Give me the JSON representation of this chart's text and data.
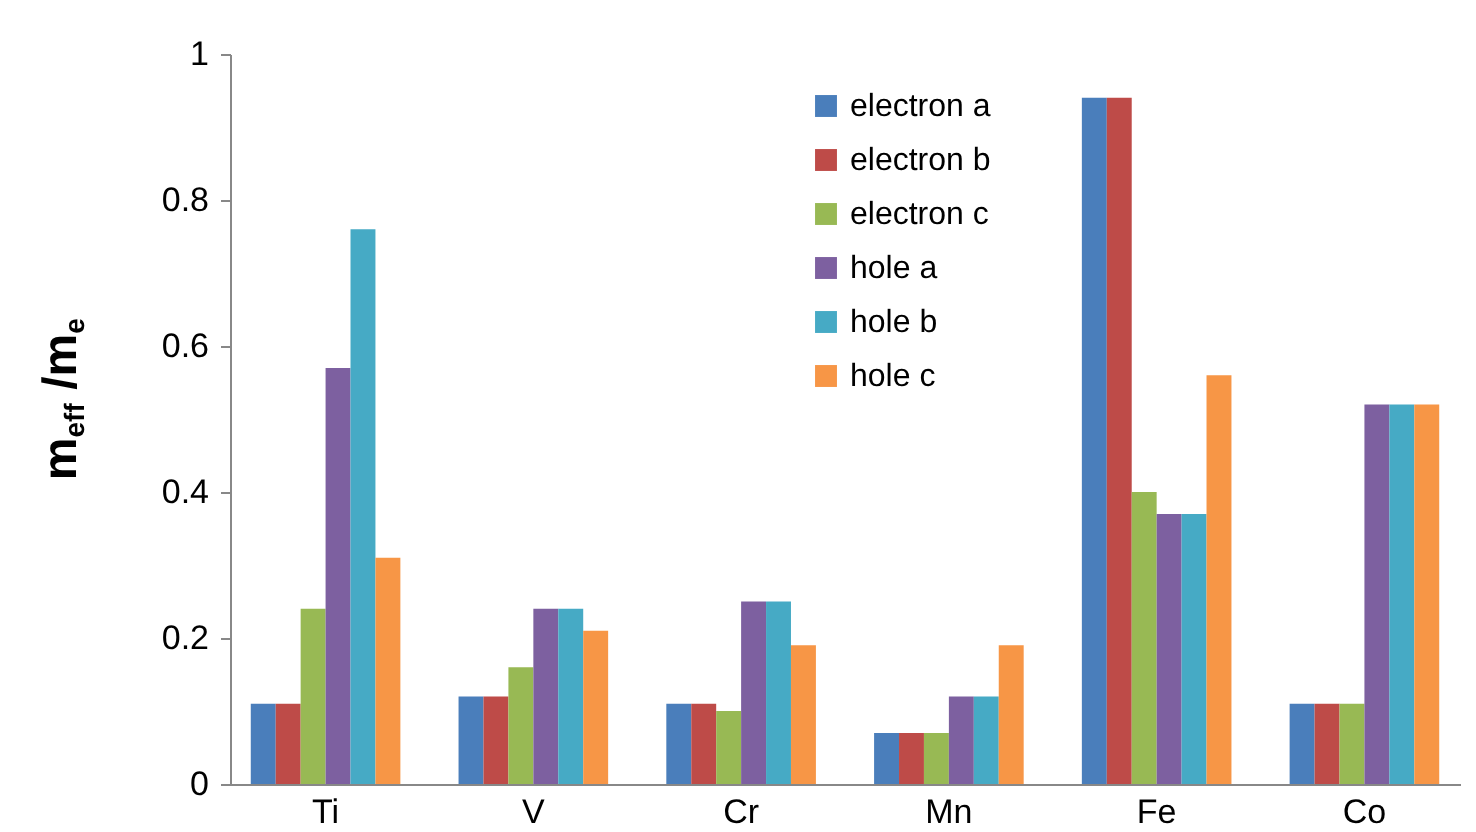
{
  "chart_data": {
    "type": "bar",
    "ylabel": "m$_{eff}$ /m$_{e}$",
    "categories": [
      "Ti",
      "V",
      "Cr",
      "Mn",
      "Fe",
      "Co"
    ],
    "series": [
      {
        "name": "electron a",
        "color": "#4a7ebb",
        "values": [
          0.11,
          0.12,
          0.11,
          0.07,
          0.94,
          0.11
        ]
      },
      {
        "name": "electron b",
        "color": "#be4b48",
        "values": [
          0.11,
          0.12,
          0.11,
          0.07,
          0.94,
          0.11
        ]
      },
      {
        "name": "electron c",
        "color": "#98b954",
        "values": [
          0.24,
          0.16,
          0.1,
          0.07,
          0.4,
          0.11
        ]
      },
      {
        "name": "hole a",
        "color": "#7d60a0",
        "values": [
          0.57,
          0.24,
          0.25,
          0.12,
          0.37,
          0.52
        ]
      },
      {
        "name": "hole b",
        "color": "#46aac5",
        "values": [
          0.76,
          0.24,
          0.25,
          0.12,
          0.37,
          0.52
        ]
      },
      {
        "name": "hole c",
        "color": "#f79646",
        "values": [
          0.31,
          0.21,
          0.19,
          0.19,
          0.56,
          0.52
        ]
      }
    ],
    "ylim": [
      0,
      1
    ],
    "yticks": [
      0,
      0.2,
      0.4,
      0.6,
      0.8,
      1
    ],
    "legend": "top",
    "grid": false
  }
}
